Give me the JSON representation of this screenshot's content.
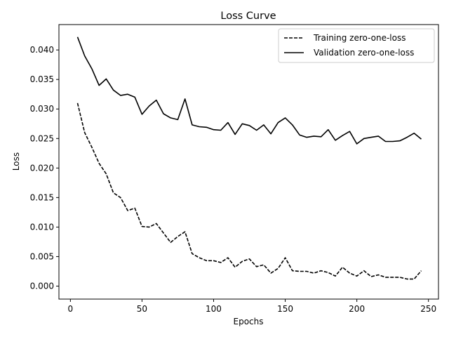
{
  "chart_data": {
    "type": "line",
    "title": "Loss Curve",
    "xlabel": "Epochs",
    "ylabel": "Loss",
    "xlim": [
      -8,
      257
    ],
    "ylim": [
      -0.0022,
      0.0443
    ],
    "xticks": [
      0,
      50,
      100,
      150,
      200,
      250
    ],
    "xtick_labels": [
      "0",
      "50",
      "100",
      "150",
      "200",
      "250"
    ],
    "yticks": [
      0.0,
      0.005,
      0.01,
      0.015,
      0.02,
      0.025,
      0.03,
      0.035,
      0.04
    ],
    "ytick_labels": [
      "0.000",
      "0.005",
      "0.010",
      "0.015",
      "0.020",
      "0.025",
      "0.030",
      "0.035",
      "0.040"
    ],
    "grid": false,
    "legend_position": "top-right",
    "x": [
      5,
      10,
      15,
      20,
      25,
      30,
      35,
      40,
      45,
      50,
      55,
      60,
      65,
      70,
      75,
      80,
      85,
      90,
      95,
      100,
      105,
      110,
      115,
      120,
      125,
      130,
      135,
      140,
      145,
      150,
      155,
      160,
      165,
      170,
      175,
      180,
      185,
      190,
      195,
      200,
      205,
      210,
      215,
      220,
      225,
      230,
      235,
      240,
      245
    ],
    "series": [
      {
        "name": "Training zero-one-loss",
        "style": "dashed",
        "color": "#000000",
        "values": [
          0.031,
          0.026,
          0.0235,
          0.0208,
          0.019,
          0.0158,
          0.015,
          0.0128,
          0.0132,
          0.0101,
          0.01,
          0.0106,
          0.009,
          0.0074,
          0.0084,
          0.0092,
          0.0055,
          0.0048,
          0.0043,
          0.0043,
          0.004,
          0.0048,
          0.0032,
          0.0042,
          0.0046,
          0.0033,
          0.0036,
          0.0022,
          0.003,
          0.0048,
          0.0026,
          0.0025,
          0.0025,
          0.0022,
          0.0026,
          0.0023,
          0.0017,
          0.0032,
          0.0022,
          0.0017,
          0.0026,
          0.0016,
          0.0019,
          0.0015,
          0.0015,
          0.0015,
          0.0012,
          0.0012,
          0.0026
        ]
      },
      {
        "name": "Validation zero-one-loss",
        "style": "solid",
        "color": "#000000",
        "values": [
          0.0422,
          0.039,
          0.0368,
          0.034,
          0.0351,
          0.0332,
          0.0323,
          0.0325,
          0.032,
          0.0291,
          0.0305,
          0.0315,
          0.0292,
          0.0285,
          0.0282,
          0.0317,
          0.0273,
          0.027,
          0.0269,
          0.0265,
          0.0264,
          0.0277,
          0.0257,
          0.0275,
          0.0272,
          0.0264,
          0.0273,
          0.0258,
          0.0277,
          0.0285,
          0.0273,
          0.0256,
          0.0252,
          0.0254,
          0.0253,
          0.0265,
          0.0247,
          0.0255,
          0.0262,
          0.0241,
          0.025,
          0.0252,
          0.0254,
          0.0245,
          0.0245,
          0.0246,
          0.0252,
          0.0259,
          0.0249
        ]
      }
    ]
  }
}
